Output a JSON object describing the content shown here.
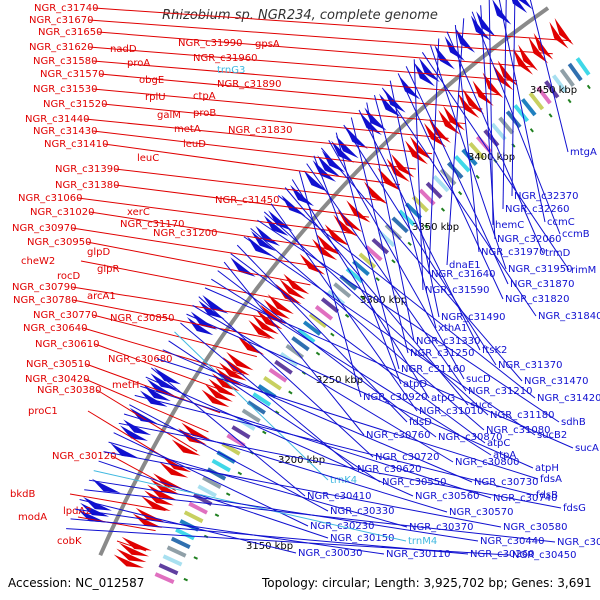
{
  "title": "Rhizobium sp. NGR234, complete genome",
  "footer": {
    "accession": "Accession: NC_012587",
    "summary": "Topology: circular; Length: 3,925,702 bp; Genes: 3,691"
  },
  "colors": {
    "forward": "#e00000",
    "reverse": "#1010d0",
    "rna": "#40b8e0",
    "backbone": "#8a8a8a",
    "tick": "#208020"
  },
  "position_labels": [
    "3450 kbp",
    "3400 kbp",
    "3350 kbp",
    "3300 kbp",
    "3250 kbp",
    "3200 kbp",
    "3150 kbp"
  ],
  "left_labels": [
    "NGR_c31740",
    "NGR_c31670",
    "NGR_c31650",
    "NGR_c31620",
    "NGR_c31580",
    "NGR_c31570",
    "NGR_c31530",
    "NGR_c31520",
    "NGR_c31440",
    "NGR_c31430",
    "NGR_c31410",
    "NGR_c31390",
    "NGR_c31380",
    "NGR_c31060",
    "NGR_c31020",
    "NGR_c30970",
    "NGR_c30950",
    "cheW2",
    "NGR_c30790",
    "NGR_c30780",
    "NGR_c30770",
    "NGR_c30640",
    "NGR_c30610",
    "NGR_c30510",
    "NGR_c30420",
    "NGR_c30380",
    "proC1",
    "NGR_c30120",
    "bkdB",
    "modA",
    "cobK"
  ],
  "mid_labels": [
    "nadD",
    "proA",
    "obgE",
    "rplU",
    "galM",
    "metA",
    "leuD",
    "leuC",
    "NGR_c31170",
    "xerC",
    "glpD",
    "glpR",
    "rocD",
    "arcA1",
    "NGR_c30850",
    "NGR_c30680",
    "metH",
    "lpdA2",
    "NGR_c31990",
    "NGR_c31960",
    "trnG3",
    "NGR_c31890",
    "ctpA",
    "proB",
    "NGR_c31830",
    "NGR_c31450",
    "NGR_c31200",
    "gpsA"
  ],
  "right_labels": [
    "mtgA",
    "NGR_c32370",
    "NGR_c32260",
    "ccmC",
    "hemC",
    "NGR_c32060",
    "ccmB",
    "dnaE1",
    "NGR_c31970",
    "trmD",
    "NGR_c31640",
    "NGR_c31950",
    "rimM",
    "NGR_c31590",
    "NGR_c31870",
    "NGR_c31820",
    "NGR_c31490",
    "NGR_c31840",
    "xthA1",
    "NGR_c31330",
    "ftsK2",
    "NGR_c31250",
    "NGR_c31370",
    "NGR_c31160",
    "sucD",
    "NGR_c31470",
    "atpD",
    "NGR_c31210",
    "NGR_c30920",
    "atpG",
    "succ",
    "NGR_c31420",
    "NGR_c31010",
    "NGR_c31180",
    "sdhB",
    "NGR_c31080",
    "sucB2",
    "fdsD",
    "atpC",
    "NGR_c30760",
    "NGR_c30870",
    "atpA",
    "sucA",
    "NGR_c30720",
    "NGR_c30800",
    "atpH",
    "NGR_c30620",
    "trnK4",
    "NGR_c30550",
    "NGR_c30730",
    "fdsA",
    "NGR_c30410",
    "NGR_c30560",
    "NGR_c30740",
    "fdsB",
    "NGR_c30330",
    "NGR_c30570",
    "fdsG",
    "NGR_c30230",
    "NGR_c30370",
    "NGR_c30580",
    "NGR_c30150",
    "trnM4",
    "NGR_c30440",
    "NGR_c30630",
    "NGR_c30030",
    "NGR_c30110",
    "NGR_c30260",
    "NGR_c30450"
  ]
}
